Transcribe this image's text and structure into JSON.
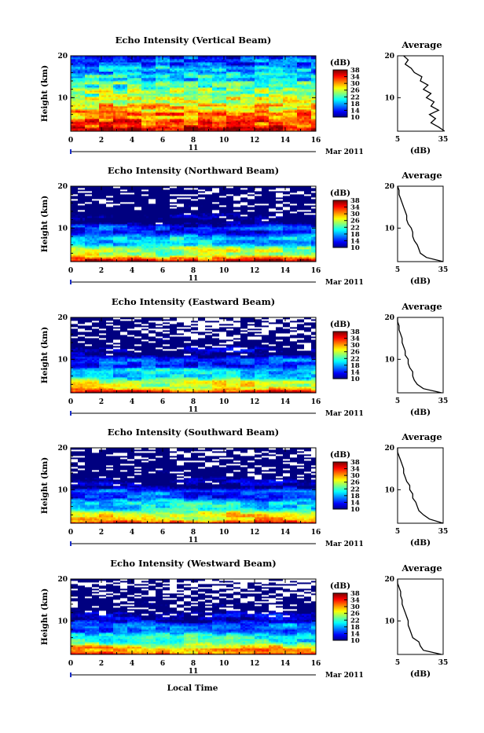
{
  "figure": {
    "xlabel": "Local Time",
    "ylabel": "Height (km)",
    "date_day": "11",
    "date_month": "Mar 2011",
    "colorbar_unit": "(dB)",
    "colorbar_ticks": [
      "10",
      "14",
      "18",
      "22",
      "26",
      "30",
      "34",
      "38"
    ],
    "profile_title": "Average",
    "profile_xlabel": "(dB)",
    "profile_xticks": [
      "5",
      "35"
    ],
    "x_ticks": [
      "0",
      "2",
      "4",
      "6",
      "8",
      "10",
      "12",
      "14",
      "16"
    ],
    "y_ticks": [
      "10",
      "20"
    ]
  },
  "chart_data": [
    {
      "type": "heatmap",
      "title": "Echo Intensity (Vertical Beam)",
      "xlim": [
        0,
        16
      ],
      "ylim": [
        2,
        20
      ],
      "zlim": [
        10,
        38
      ],
      "colormap": "jet",
      "missing_level": 0.0,
      "profile": {
        "height_km": [
          2,
          3,
          4,
          5,
          6,
          7,
          8,
          9,
          10,
          11,
          12,
          13,
          14,
          15,
          16,
          17,
          18,
          19,
          20
        ],
        "db": [
          36,
          32,
          27,
          30,
          26,
          32,
          27,
          29,
          24,
          27,
          22,
          25,
          20,
          21,
          16,
          14,
          10,
          12,
          9
        ]
      }
    },
    {
      "type": "heatmap",
      "title": "Echo Intensity (Northward Beam)",
      "xlim": [
        0,
        16
      ],
      "ylim": [
        2,
        20
      ],
      "zlim": [
        10,
        38
      ],
      "colormap": "jet",
      "missing_level": 0.14,
      "profile": {
        "height_km": [
          2,
          3,
          4,
          5,
          6,
          7,
          8,
          9,
          10,
          11,
          12,
          13,
          14,
          15,
          16,
          17,
          18,
          19,
          20
        ],
        "db": [
          35,
          24,
          20,
          19,
          18,
          16,
          15,
          15,
          14,
          12,
          11,
          11,
          10,
          9,
          8,
          7,
          6,
          6,
          5
        ]
      }
    },
    {
      "type": "heatmap",
      "title": "Echo Intensity (Eastward Beam)",
      "xlim": [
        0,
        16
      ],
      "ylim": [
        2,
        20
      ],
      "zlim": [
        10,
        38
      ],
      "colormap": "jet",
      "missing_level": 0.22,
      "profile": {
        "height_km": [
          2,
          3,
          4,
          5,
          6,
          7,
          8,
          9,
          10,
          11,
          12,
          13,
          14,
          15,
          16,
          17,
          18,
          19,
          20
        ],
        "db": [
          34,
          22,
          18,
          16,
          15,
          15,
          13,
          12,
          12,
          10,
          10,
          9,
          8,
          8,
          7,
          6,
          6,
          5,
          5
        ]
      }
    },
    {
      "type": "heatmap",
      "title": "Echo Intensity (Southward Beam)",
      "xlim": [
        0,
        16
      ],
      "ylim": [
        2,
        20
      ],
      "zlim": [
        10,
        38
      ],
      "colormap": "jet",
      "missing_level": 0.16,
      "profile": {
        "height_km": [
          2,
          3,
          4,
          5,
          6,
          7,
          8,
          9,
          10,
          11,
          12,
          13,
          14,
          15,
          16,
          17,
          18,
          19,
          20
        ],
        "db": [
          35,
          26,
          22,
          19,
          18,
          17,
          15,
          15,
          13,
          13,
          11,
          10,
          9,
          9,
          8,
          7,
          6,
          5,
          5
        ]
      }
    },
    {
      "type": "heatmap",
      "title": "Echo Intensity (Westward Beam)",
      "xlim": [
        0,
        16
      ],
      "ylim": [
        2,
        20
      ],
      "zlim": [
        10,
        38
      ],
      "colormap": "jet",
      "missing_level": 0.26,
      "profile": {
        "height_km": [
          2,
          3,
          4,
          5,
          6,
          7,
          8,
          9,
          10,
          11,
          12,
          13,
          14,
          15,
          16,
          17,
          18,
          19,
          20
        ],
        "db": [
          34,
          22,
          20,
          19,
          15,
          14,
          13,
          12,
          12,
          11,
          10,
          9,
          8,
          8,
          7,
          7,
          6,
          5,
          5
        ]
      }
    }
  ]
}
